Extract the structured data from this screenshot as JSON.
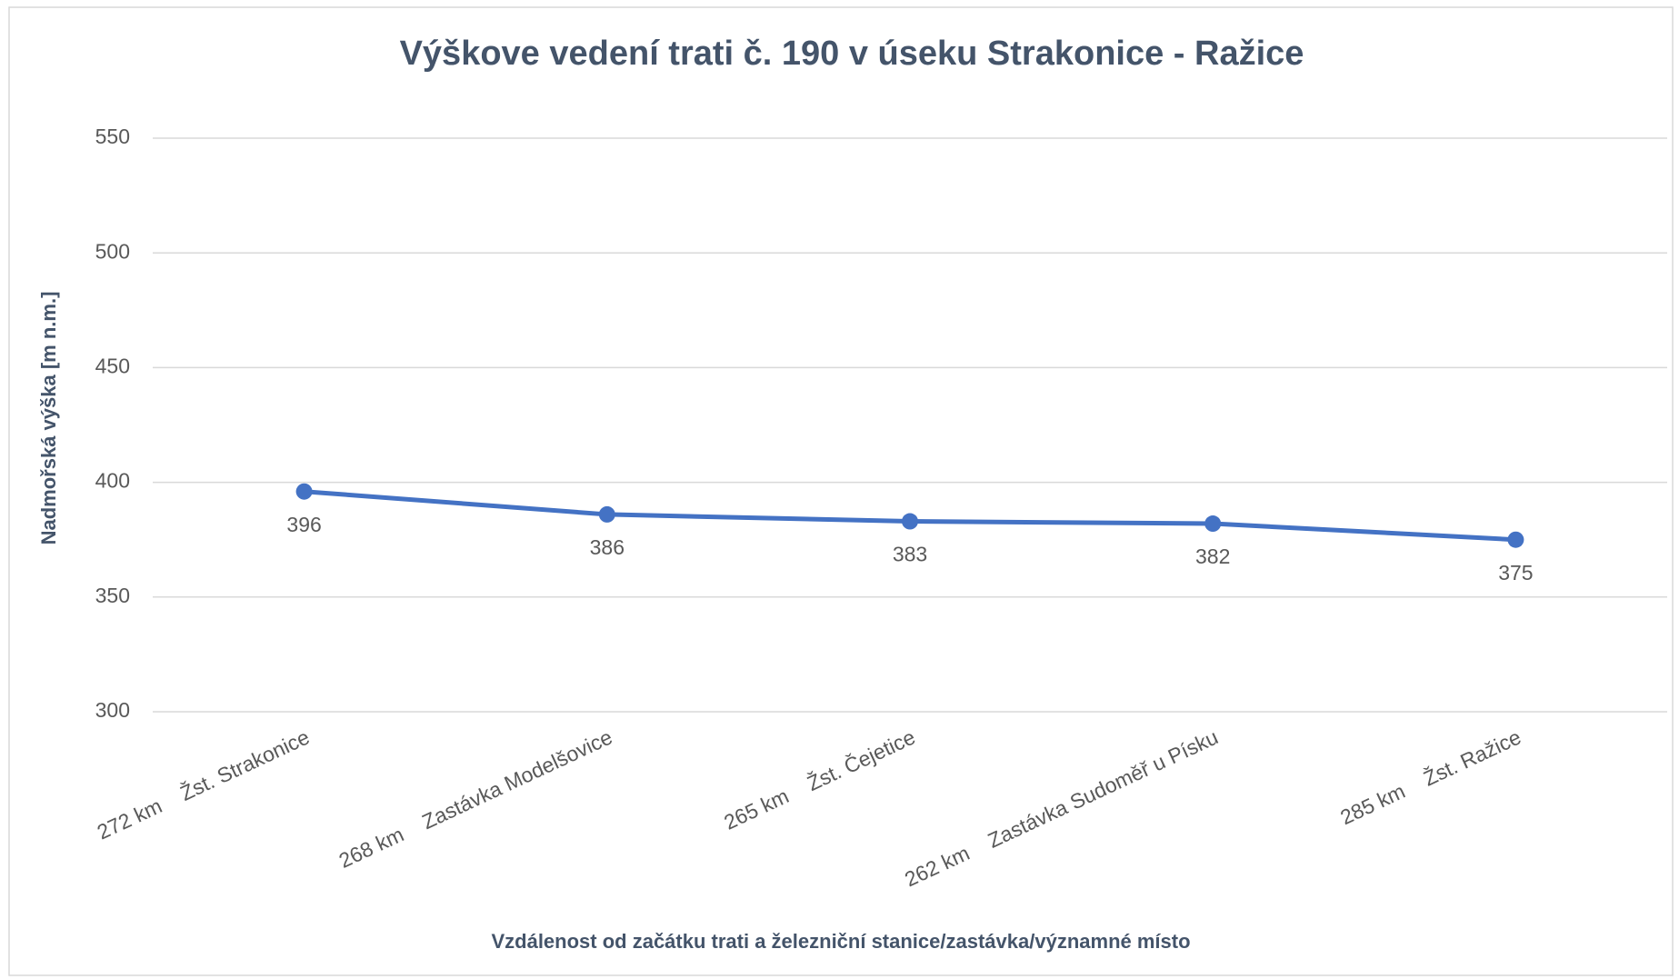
{
  "chart_data": {
    "type": "line",
    "title": "Výškove vedení trati č. 190 v úseku Strakonice - Ražice",
    "x_label": "Vzdálenost od začátku trati a železniční stanice/zastávka/významné místo",
    "y_label": "Nadmořská výška [m n.m.]",
    "categories": [
      "272 km    Žst. Strakonice",
      "268 km    Zastávka Modelšovice",
      "265 km    Žst. Čejetice",
      "262 km    Zastávka Sudoměř u Písku",
      "285 km    Žst. Ražice"
    ],
    "series": [
      {
        "name": "Nadmořská výška",
        "color": "#4472c4",
        "values": [
          396,
          386,
          383,
          382,
          375
        ]
      }
    ],
    "ylim": [
      300,
      550
    ],
    "yticks": [
      300,
      350,
      400,
      450,
      500,
      550
    ],
    "grid": true
  }
}
